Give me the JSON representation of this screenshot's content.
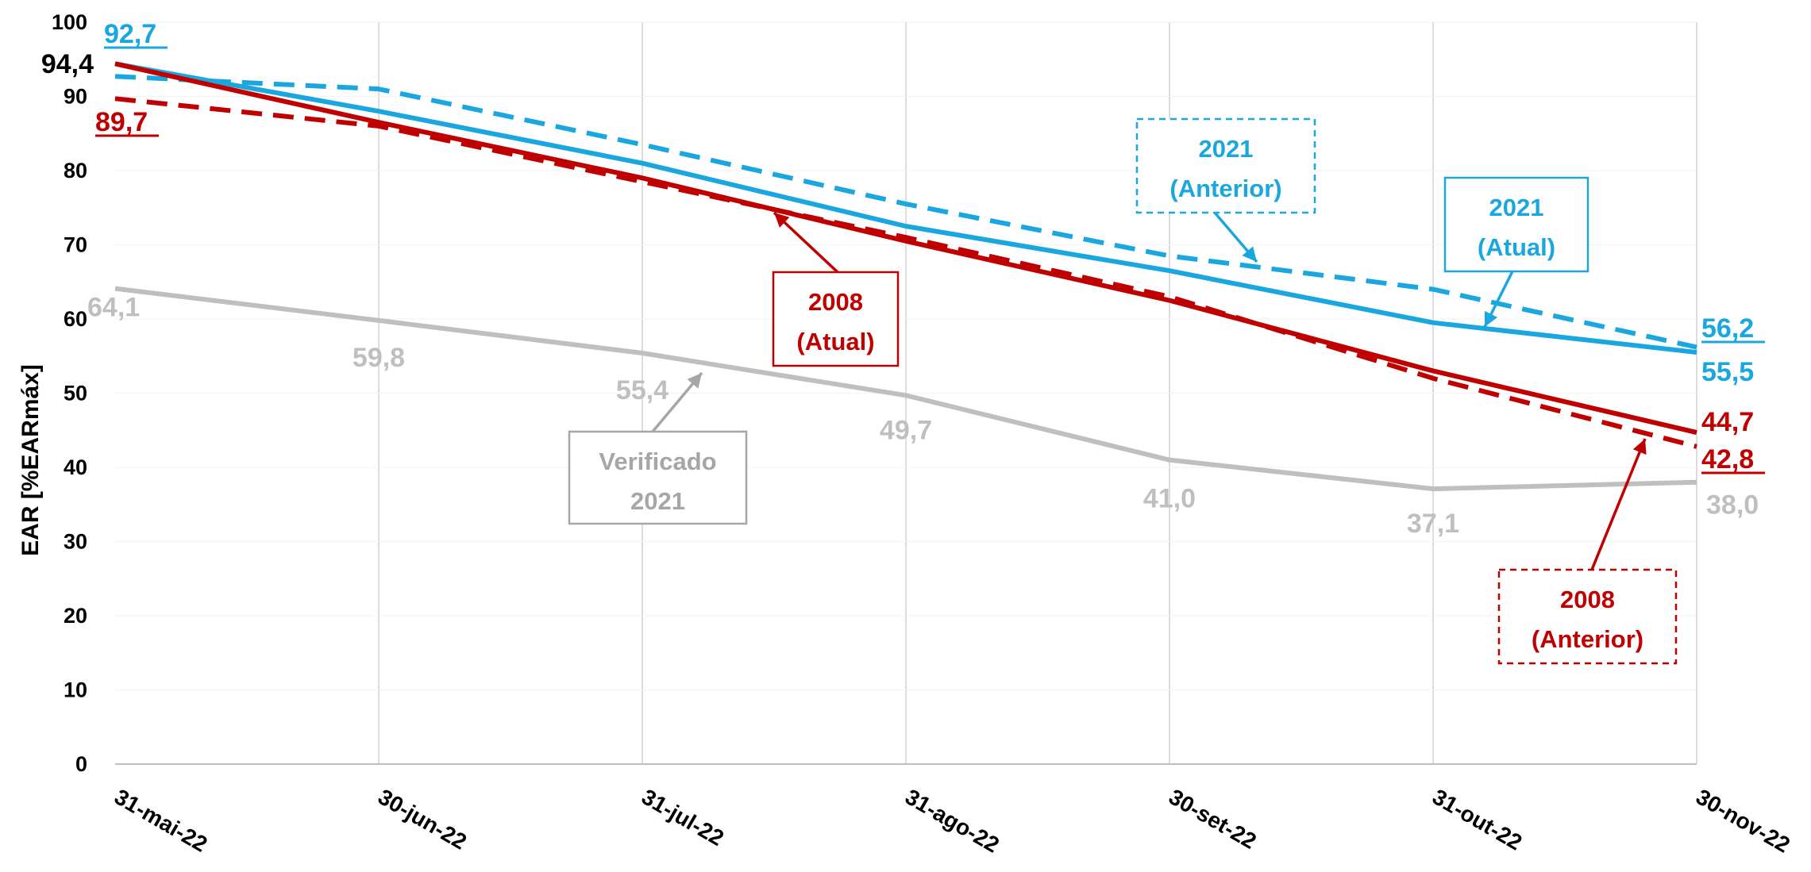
{
  "chart_data": {
    "type": "line",
    "ylabel": "EAR [%EARmáx]",
    "xlabel": "",
    "ylim": [
      0,
      100
    ],
    "yticks": [
      "0",
      "10",
      "20",
      "30",
      "40",
      "50",
      "60",
      "70",
      "80",
      "90",
      "100"
    ],
    "categories": [
      "31-mai-22",
      "30-jun-22",
      "31-jul-22",
      "31-ago-22",
      "30-set-22",
      "31-out-22",
      "30-nov-22"
    ],
    "grid": "vertical",
    "colors": {
      "verificado": "#bfbfbf",
      "cyan": "#1aa7e0",
      "red": "#c00000",
      "first_point": "#000000"
    },
    "series": [
      {
        "key": "verificado",
        "name": "Verificado 2021",
        "style": "solid",
        "values": [
          64.1,
          59.8,
          55.4,
          49.7,
          41.0,
          37.1,
          38.0
        ],
        "labels": [
          "64,1",
          "59,8",
          "55,4",
          "49,7",
          "41,0",
          "37,1",
          "38,0"
        ]
      },
      {
        "key": "anterior_2021",
        "name": "2021 (Anterior)",
        "style": "dashed",
        "values": [
          92.7,
          91.0,
          83.5,
          75.5,
          68.5,
          64.0,
          56.2
        ],
        "start_label": "92,7",
        "end_label": "56,2"
      },
      {
        "key": "atual_2021",
        "name": "2021 (Atual)",
        "style": "solid",
        "values": [
          94.4,
          88.0,
          81.0,
          72.5,
          66.5,
          59.5,
          55.5
        ],
        "start_label": "94,4",
        "end_label": "55,5"
      },
      {
        "key": "anterior_2008",
        "name": "2008 (Anterior)",
        "style": "dashed",
        "values": [
          89.7,
          86.0,
          78.5,
          71.0,
          63.0,
          52.0,
          42.8
        ],
        "start_label": "89,7",
        "end_label": "42,8"
      },
      {
        "key": "atual_2008",
        "name": "2008 (Atual)",
        "style": "solid",
        "values": [
          94.4,
          86.5,
          79.0,
          70.5,
          62.5,
          53.0,
          44.7
        ],
        "end_label": "44,7"
      }
    ],
    "annotations": [
      {
        "key": "ann_2021_anterior",
        "line1": "2021",
        "line2": "(Anterior)"
      },
      {
        "key": "ann_2021_atual",
        "line1": "2021",
        "line2": "(Atual)"
      },
      {
        "key": "ann_2008_atual",
        "line1": "2008",
        "line2": "(Atual)"
      },
      {
        "key": "ann_verificado",
        "line1": "Verificado",
        "line2": "2021"
      },
      {
        "key": "ann_2008_anterior",
        "line1": "2008",
        "line2": "(Anterior)"
      }
    ]
  }
}
